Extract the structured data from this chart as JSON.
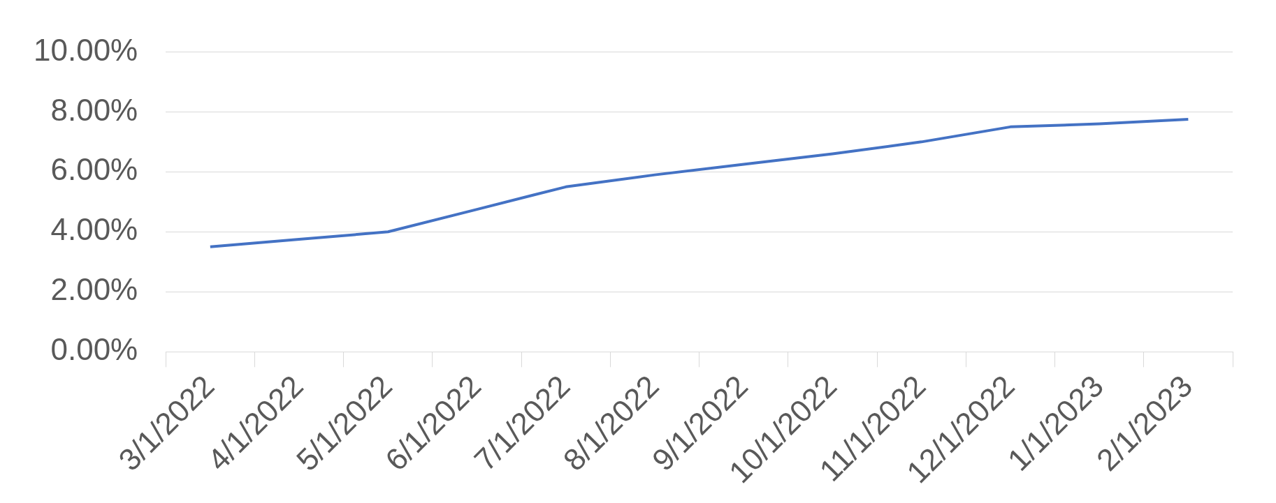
{
  "chart_data": {
    "type": "line",
    "categories": [
      "3/1/2022",
      "4/1/2022",
      "5/1/2022",
      "6/1/2022",
      "7/1/2022",
      "8/1/2022",
      "9/1/2022",
      "10/1/2022",
      "11/1/2022",
      "12/1/2022",
      "1/1/2023",
      "2/1/2023"
    ],
    "series": [
      {
        "color": "#4472c4",
        "values": [
          3.5,
          3.75,
          4.0,
          4.75,
          5.5,
          5.9,
          6.25,
          6.6,
          7.0,
          7.5,
          7.6,
          7.75
        ]
      }
    ],
    "ylim": [
      0,
      10
    ],
    "yticks": [
      {
        "value": 0,
        "label": "0.00%"
      },
      {
        "value": 2,
        "label": "2.00%"
      },
      {
        "value": 4,
        "label": "4.00%"
      },
      {
        "value": 6,
        "label": "6.00%"
      },
      {
        "value": 8,
        "label": "8.00%"
      },
      {
        "value": 10,
        "label": "10.00%"
      }
    ],
    "grid": "y",
    "legend": false,
    "marker": "none",
    "line_style": "solid"
  }
}
